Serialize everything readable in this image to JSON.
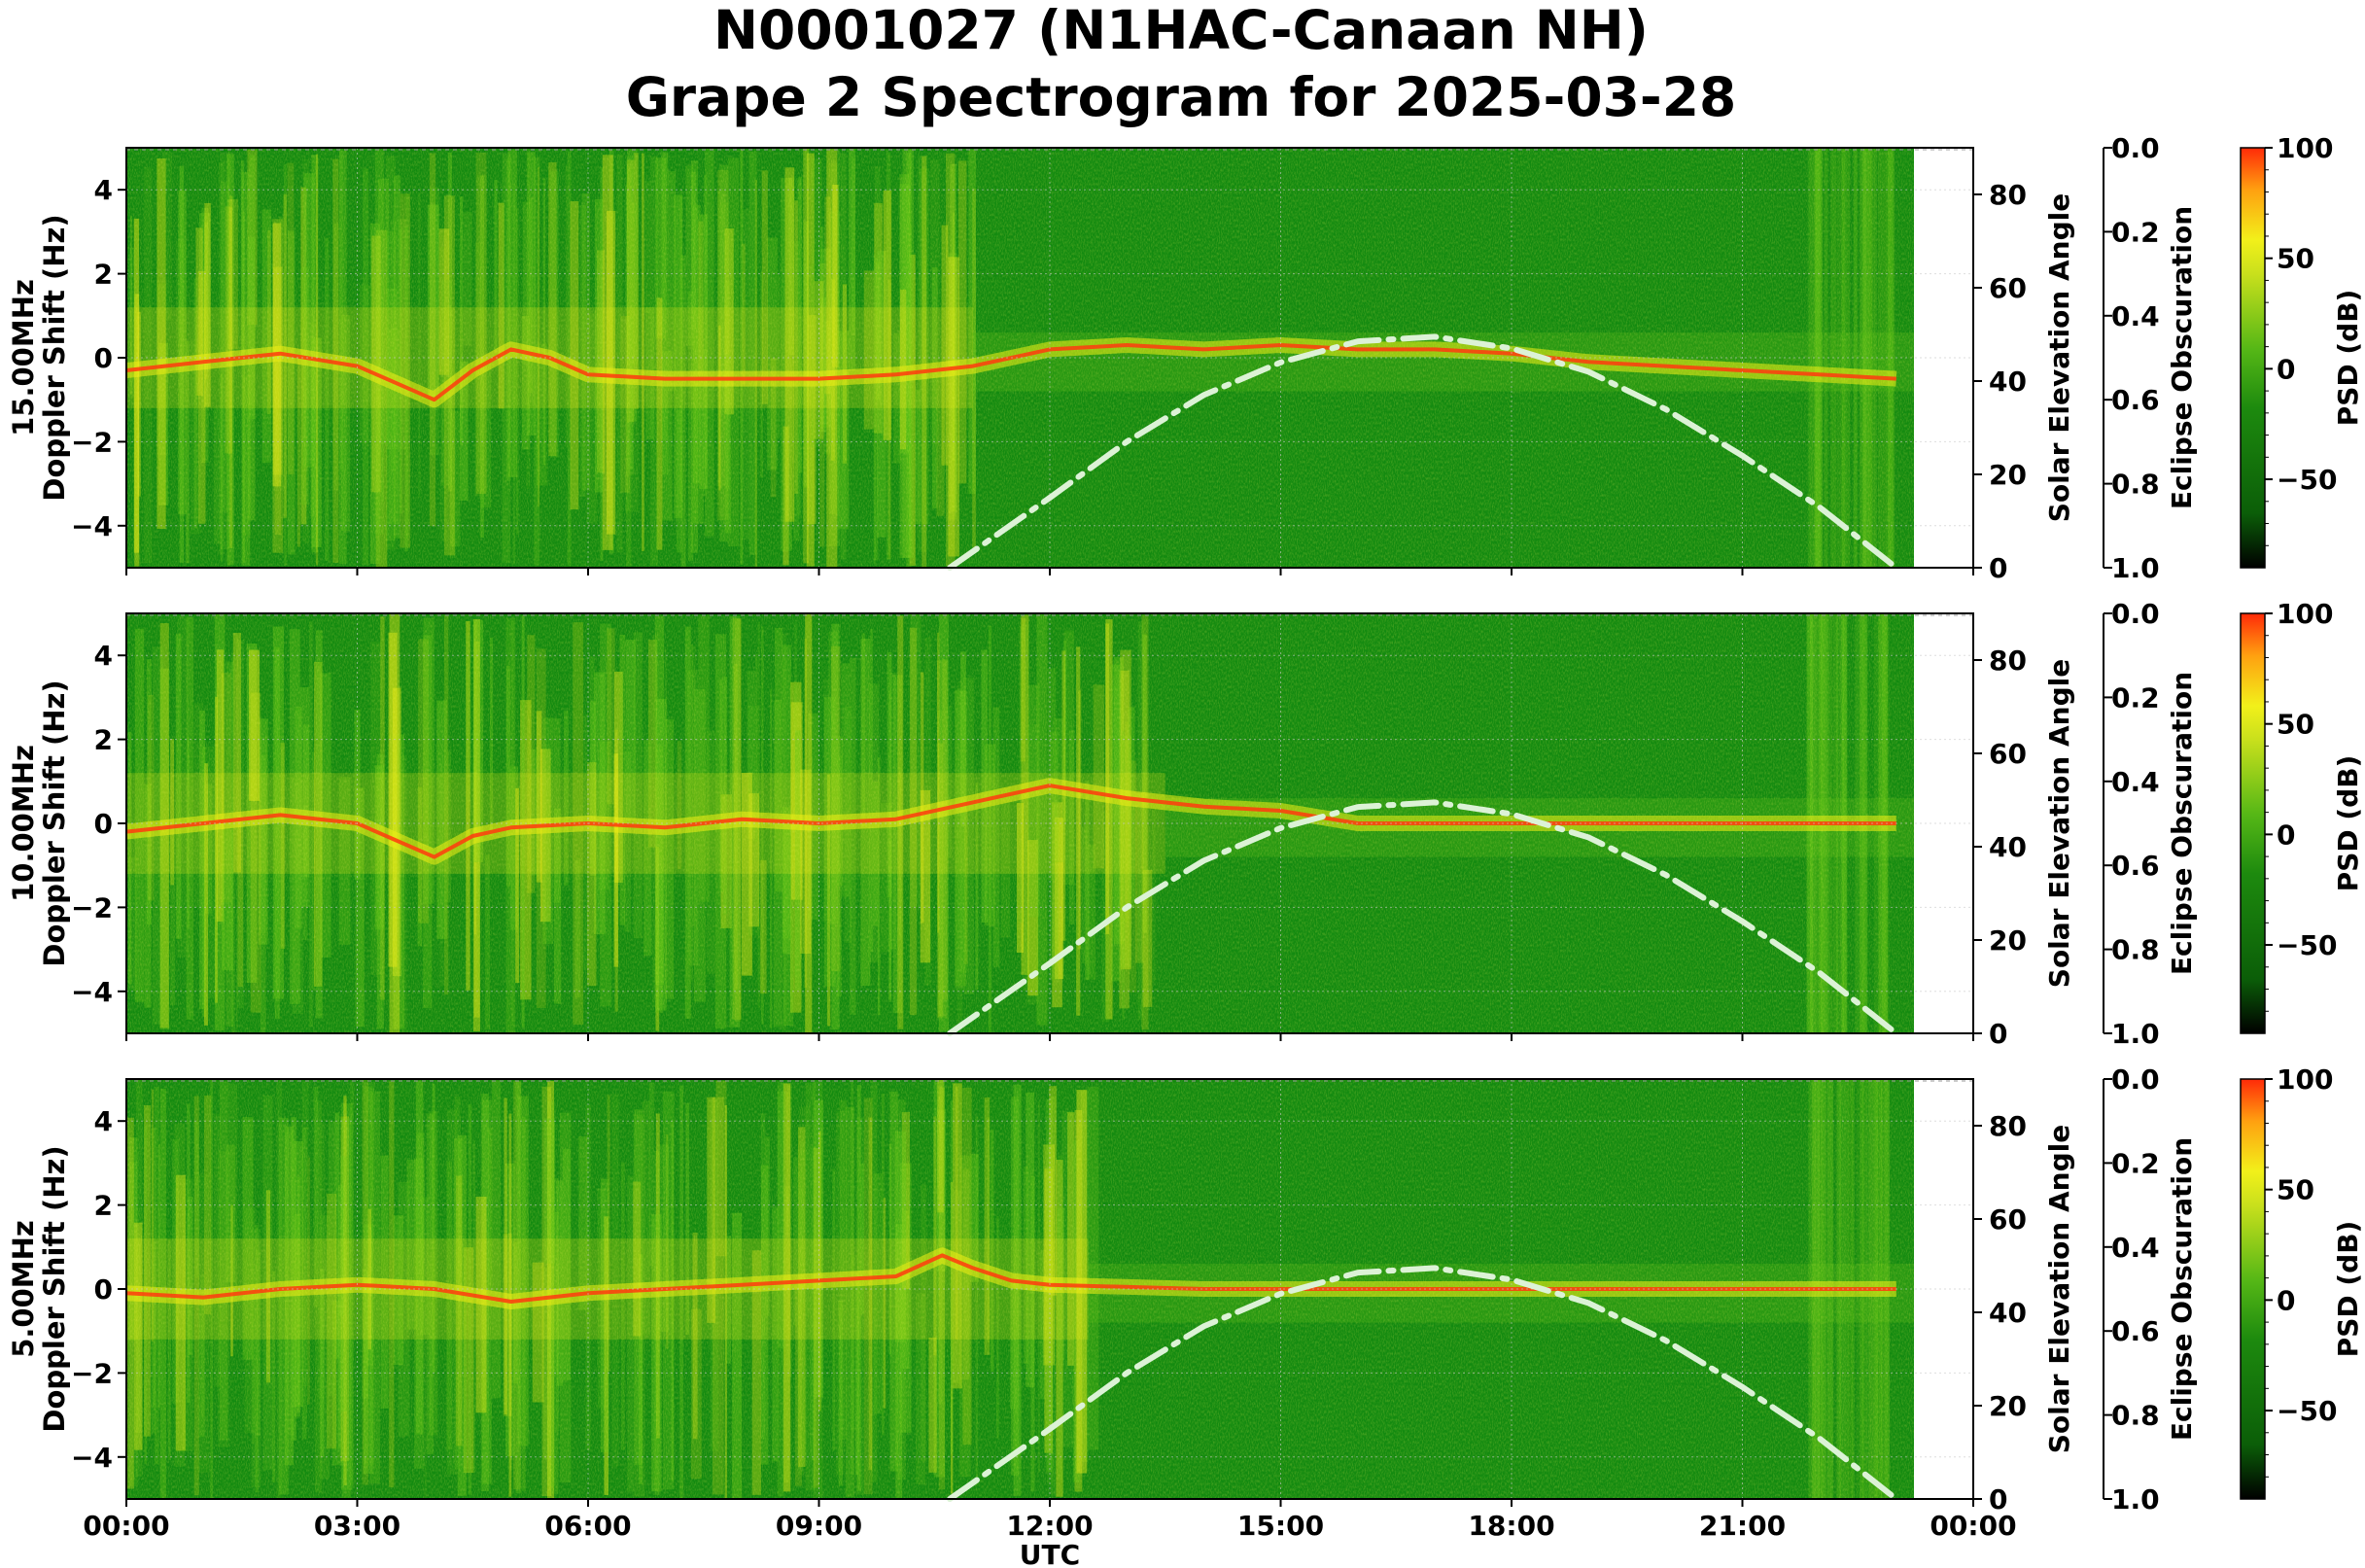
{
  "title_line1": "N0001027 (N1HAC-Canaan NH)",
  "title_line2": "Grape 2 Spectrogram for 2025-03-28",
  "chart_data": [
    {
      "type": "heatmap",
      "frequency_label": "15.00MHz",
      "ylabel": "Doppler Shift (Hz)",
      "ylabel2": "Solar Elevation Angle",
      "ylabel3": "Eclipse Obscuration",
      "colorbar_label": "PSD (dB)",
      "xlabel": "",
      "ylim": [
        -5,
        5
      ],
      "y2lim": [
        0,
        90
      ],
      "y3lim": [
        1.0,
        0.0
      ],
      "clim": [
        -90,
        100
      ],
      "ridge": [
        [
          0,
          -0.3
        ],
        [
          1,
          -0.1
        ],
        [
          2,
          0.1
        ],
        [
          3,
          -0.2
        ],
        [
          4,
          -1.0
        ],
        [
          4.5,
          -0.3
        ],
        [
          5,
          0.2
        ],
        [
          5.5,
          0.0
        ],
        [
          6,
          -0.4
        ],
        [
          7,
          -0.5
        ],
        [
          8,
          -0.5
        ],
        [
          9,
          -0.5
        ],
        [
          10,
          -0.4
        ],
        [
          11,
          -0.2
        ],
        [
          12,
          0.2
        ],
        [
          13,
          0.3
        ],
        [
          14,
          0.2
        ],
        [
          15,
          0.3
        ],
        [
          16,
          0.2
        ],
        [
          17,
          0.2
        ],
        [
          18,
          0.1
        ],
        [
          19,
          -0.1
        ],
        [
          20,
          -0.2
        ],
        [
          21,
          -0.3
        ],
        [
          22,
          -0.4
        ],
        [
          23,
          -0.5
        ]
      ],
      "solar_elevation": [
        [
          10.7,
          0
        ],
        [
          12,
          15
        ],
        [
          13,
          27
        ],
        [
          14,
          37
        ],
        [
          15,
          44
        ],
        [
          16,
          48.5
        ],
        [
          17,
          49.5
        ],
        [
          18,
          47
        ],
        [
          19,
          42
        ],
        [
          20,
          34
        ],
        [
          21,
          24
        ],
        [
          22,
          13
        ],
        [
          23,
          0
        ]
      ]
    },
    {
      "type": "heatmap",
      "frequency_label": "10.00MHz",
      "ylabel": "Doppler Shift (Hz)",
      "ylabel2": "Solar Elevation Angle",
      "ylabel3": "Eclipse Obscuration",
      "colorbar_label": "PSD (dB)",
      "xlabel": "",
      "ylim": [
        -5,
        5
      ],
      "y2lim": [
        0,
        90
      ],
      "y3lim": [
        1.0,
        0.0
      ],
      "clim": [
        -90,
        100
      ],
      "ridge": [
        [
          0,
          -0.2
        ],
        [
          1,
          0.0
        ],
        [
          2,
          0.2
        ],
        [
          3,
          0.0
        ],
        [
          4,
          -0.8
        ],
        [
          4.5,
          -0.3
        ],
        [
          5,
          -0.1
        ],
        [
          6,
          0.0
        ],
        [
          7,
          -0.1
        ],
        [
          8,
          0.1
        ],
        [
          9,
          0.0
        ],
        [
          10,
          0.1
        ],
        [
          11,
          0.5
        ],
        [
          12,
          0.9
        ],
        [
          13,
          0.6
        ],
        [
          14,
          0.4
        ],
        [
          15,
          0.3
        ],
        [
          16,
          0.0
        ],
        [
          18,
          0.0
        ],
        [
          20,
          0.0
        ],
        [
          22,
          0.0
        ],
        [
          23,
          0.0
        ]
      ],
      "solar_elevation": [
        [
          10.7,
          0
        ],
        [
          12,
          15
        ],
        [
          13,
          27
        ],
        [
          14,
          37
        ],
        [
          15,
          44
        ],
        [
          16,
          48.5
        ],
        [
          17,
          49.5
        ],
        [
          18,
          47
        ],
        [
          19,
          42
        ],
        [
          20,
          34
        ],
        [
          21,
          24
        ],
        [
          22,
          13
        ],
        [
          23,
          0
        ]
      ]
    },
    {
      "type": "heatmap",
      "frequency_label": "5.00MHz",
      "ylabel": "Doppler Shift (Hz)",
      "ylabel2": "Solar Elevation Angle",
      "ylabel3": "Eclipse Obscuration",
      "colorbar_label": "PSD (dB)",
      "xlabel": "UTC",
      "ylim": [
        -5,
        5
      ],
      "y2lim": [
        0,
        90
      ],
      "y3lim": [
        1.0,
        0.0
      ],
      "clim": [
        -90,
        100
      ],
      "ridge": [
        [
          0,
          -0.1
        ],
        [
          1,
          -0.2
        ],
        [
          2,
          0.0
        ],
        [
          3,
          0.1
        ],
        [
          4,
          0.0
        ],
        [
          5,
          -0.3
        ],
        [
          6,
          -0.1
        ],
        [
          7,
          0.0
        ],
        [
          8,
          0.1
        ],
        [
          9,
          0.2
        ],
        [
          10,
          0.3
        ],
        [
          10.6,
          0.8
        ],
        [
          11,
          0.5
        ],
        [
          11.5,
          0.2
        ],
        [
          12,
          0.1
        ],
        [
          14,
          0.0
        ],
        [
          18,
          0.0
        ],
        [
          22,
          0.0
        ],
        [
          23,
          0.0
        ]
      ],
      "solar_elevation": [
        [
          10.7,
          0
        ],
        [
          12,
          15
        ],
        [
          13,
          27
        ],
        [
          14,
          37
        ],
        [
          15,
          44
        ],
        [
          16,
          48.5
        ],
        [
          17,
          49.5
        ],
        [
          18,
          47
        ],
        [
          19,
          42
        ],
        [
          20,
          34
        ],
        [
          21,
          24
        ],
        [
          22,
          13
        ],
        [
          23,
          0
        ]
      ]
    }
  ],
  "x_ticks": [
    "00:00",
    "03:00",
    "06:00",
    "09:00",
    "12:00",
    "15:00",
    "18:00",
    "21:00",
    "00:00"
  ],
  "y_ticks": [
    "4",
    "2",
    "0",
    "−2",
    "−4"
  ],
  "y2_ticks": [
    "80",
    "60",
    "40",
    "20",
    "0"
  ],
  "y3_ticks": [
    "0.0",
    "0.2",
    "0.4",
    "0.6",
    "0.8",
    "1.0"
  ],
  "colorbar_ticks": [
    "100",
    "50",
    "0",
    "−50"
  ],
  "colors": {
    "background": "#138a10",
    "mid": "#63c418",
    "high": "#f1ee16",
    "peak": "#ff3a0e",
    "solar_curve": "#dcf2d6",
    "colorbar_stops": [
      "#000000",
      "#0b5e08",
      "#2e9a10",
      "#9bd21e",
      "#f2f01a",
      "#ffb010",
      "#ff2a08"
    ]
  }
}
